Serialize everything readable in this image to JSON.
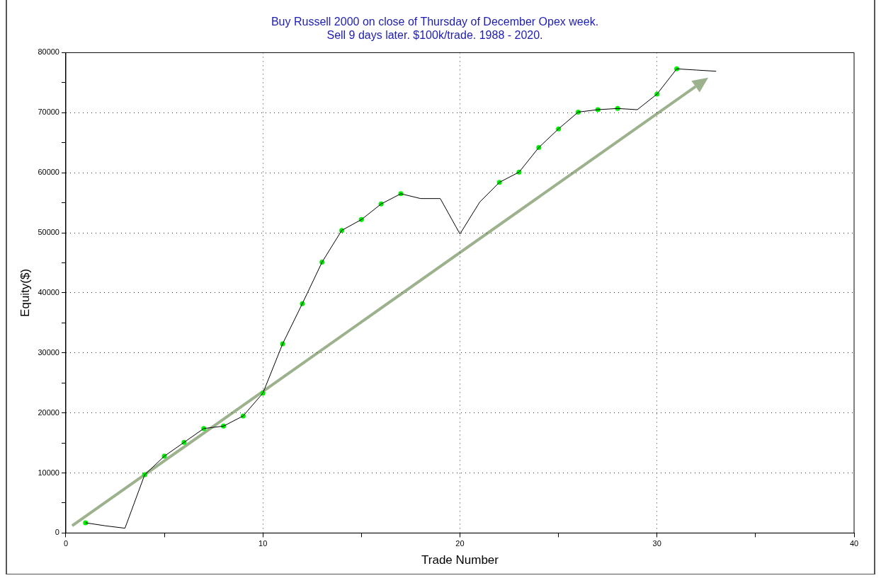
{
  "chart_data": {
    "type": "line",
    "title": "Buy Russell 2000 on close of Thursday of December Opex week.\nSell 9 days later. $100k/trade. 1988 - 2020.",
    "xlabel": "Trade Number",
    "ylabel": "Equity($)",
    "xlim": [
      0,
      40
    ],
    "xticks": [
      0,
      {
        "value": 5,
        "label": null
      },
      10,
      {
        "value": 15,
        "label": null
      },
      20,
      {
        "value": 25,
        "label": null
      },
      30,
      {
        "value": 35,
        "label": null
      },
      40
    ],
    "ylim": [
      0,
      80000
    ],
    "yticks": [
      0,
      {
        "value": 5000,
        "label": null
      },
      10000,
      {
        "value": 15000,
        "label": null
      },
      20000,
      {
        "value": 25000,
        "label": null
      },
      30000,
      {
        "value": 35000,
        "label": null
      },
      40000,
      {
        "value": 45000,
        "label": null
      },
      50000,
      {
        "value": 55000,
        "label": null
      },
      60000,
      {
        "value": 65000,
        "label": null
      },
      70000,
      {
        "value": 75000,
        "label": null
      },
      80000
    ],
    "grid": true,
    "legend": false,
    "series": [
      {
        "color": "#000000",
        "marker": "none",
        "line_style": "solid",
        "x": [
          1,
          2,
          3,
          4,
          5,
          6,
          7,
          8,
          9,
          10,
          11,
          12,
          13,
          14,
          15,
          16,
          17,
          18,
          19,
          20,
          21,
          22,
          23,
          24,
          25,
          26,
          27,
          28,
          29,
          30,
          31,
          32,
          33
        ],
        "values": [
          1700,
          1200,
          800,
          9700,
          12800,
          15100,
          17400,
          17800,
          19500,
          23300,
          31500,
          38200,
          45100,
          50400,
          52200,
          54800,
          56500,
          55700,
          55700,
          49800,
          55100,
          58400,
          60100,
          64200,
          67300,
          70100,
          70500,
          70700,
          70500,
          73100,
          77300,
          77100,
          76900
        ]
      },
      {
        "type": "scatter",
        "color": "#00ee00",
        "marker": "circle",
        "x": [
          1,
          4,
          5,
          6,
          7,
          8,
          9,
          10,
          11,
          12,
          13,
          14,
          15,
          16,
          17,
          22,
          23,
          24,
          25,
          26,
          27,
          28,
          30,
          31
        ],
        "values": [
          1700,
          9700,
          12800,
          15100,
          17400,
          17800,
          19500,
          23300,
          31500,
          38200,
          45100,
          50400,
          52200,
          54800,
          56500,
          58400,
          60100,
          64200,
          67300,
          70100,
          70500,
          70700,
          73100,
          77300
        ]
      }
    ]
  }
}
